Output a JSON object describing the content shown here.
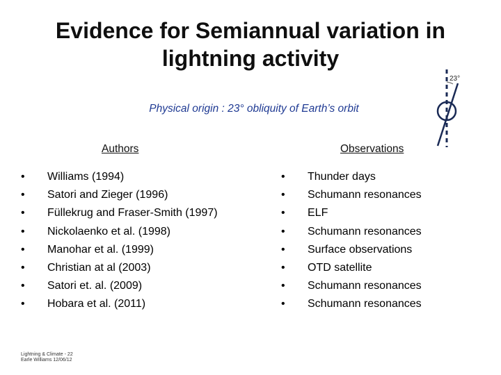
{
  "slide": {
    "title_line1": "Evidence for Semiannual variation in",
    "title_line2": "lightning activity",
    "subtitle": "Physical origin : 23° obliquity of Earth’s orbit",
    "diagram_label": "23°"
  },
  "authors": {
    "header": "Authors",
    "items": [
      "Williams (1994)",
      "Satori and Zieger (1996)",
      "Füllekrug and Fraser-Smith (1997)",
      "Nickolaenko et al. (1998)",
      "Manohar et al. (1999)",
      "Christian at al (2003)",
      "Satori et. al. (2009)",
      "Hobara et al. (2011)"
    ]
  },
  "observations": {
    "header": "Observations",
    "items": [
      "Thunder days",
      "Schumann resonances",
      "ELF",
      "Schumann resonances",
      "Surface observations",
      "OTD satellite",
      "Schumann resonances",
      "Schumann resonances"
    ]
  },
  "bullet": "•",
  "footer": {
    "line1": "Lightning & Climate - 22",
    "line2": "Earle Williams 12/06/12"
  },
  "colors": {
    "subtitle": "#1f3a93",
    "title": "#0f0f0f"
  }
}
